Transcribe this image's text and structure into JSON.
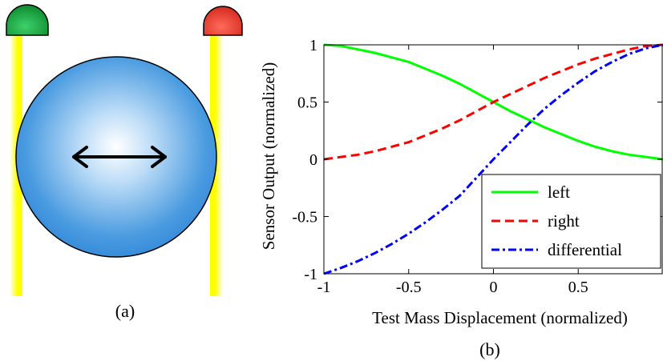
{
  "panel_a": {
    "caption": "(a)",
    "left_led_color": "#0c8a2e",
    "right_led_color": "#d42a1e",
    "beam_color": "#ffff00",
    "sphere_color": "#2f86d6",
    "arrow_icon": "double-headed-arrow-icon"
  },
  "panel_b": {
    "caption": "(b)"
  },
  "chart_data": {
    "type": "line",
    "xlabel": "Test Mass Displacement (normalized)",
    "ylabel": "Sensor Output (normalized)",
    "xlim": [
      -1,
      1
    ],
    "ylim": [
      -1,
      1
    ],
    "xticks": [
      -1,
      -0.5,
      0,
      0.5
    ],
    "xtick_labels": [
      "-1",
      "-0.5",
      "0",
      "0.5"
    ],
    "yticks": [
      -1,
      -0.5,
      0,
      0.5,
      1
    ],
    "ytick_labels": [
      "-1",
      "-0.5",
      "0",
      "0.5",
      "1"
    ],
    "grid": false,
    "legend_position": "bottom-right",
    "x": [
      -1,
      -0.9,
      -0.8,
      -0.7,
      -0.6,
      -0.5,
      -0.4,
      -0.3,
      -0.2,
      -0.1,
      0,
      0.1,
      0.2,
      0.3,
      0.4,
      0.5,
      0.6,
      0.7,
      0.8,
      0.9,
      1
    ],
    "series": [
      {
        "name": "left",
        "color": "#00ff00",
        "style": "solid",
        "values": [
          1.0,
          0.99,
          0.96,
          0.93,
          0.89,
          0.85,
          0.79,
          0.73,
          0.66,
          0.58,
          0.5,
          0.42,
          0.35,
          0.28,
          0.22,
          0.16,
          0.11,
          0.07,
          0.04,
          0.02,
          0.0
        ]
      },
      {
        "name": "right",
        "color": "#ff0000",
        "style": "dashed",
        "values": [
          0.0,
          0.02,
          0.04,
          0.07,
          0.11,
          0.15,
          0.21,
          0.27,
          0.34,
          0.42,
          0.5,
          0.57,
          0.64,
          0.71,
          0.77,
          0.83,
          0.88,
          0.92,
          0.96,
          0.99,
          1.0
        ]
      },
      {
        "name": "differential",
        "color": "#0000ff",
        "style": "dashdot",
        "values": [
          -1.0,
          -0.95,
          -0.89,
          -0.82,
          -0.74,
          -0.65,
          -0.55,
          -0.44,
          -0.32,
          -0.16,
          0.0,
          0.15,
          0.3,
          0.44,
          0.56,
          0.67,
          0.77,
          0.85,
          0.92,
          0.97,
          1.0
        ]
      }
    ]
  }
}
